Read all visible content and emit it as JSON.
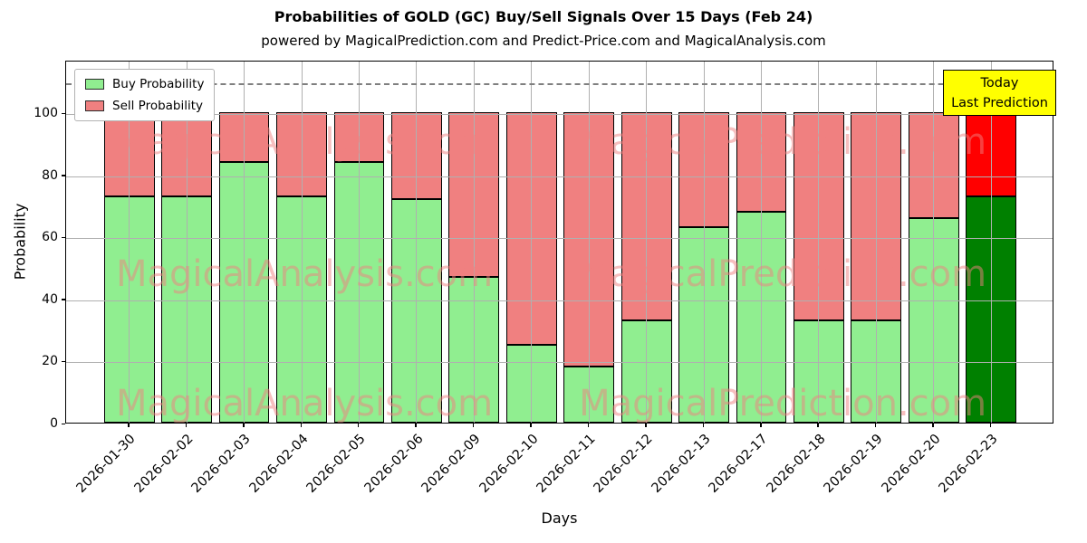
{
  "title": "Probabilities of GOLD (GC) Buy/Sell Signals Over 15 Days (Feb 24)",
  "subtitle": "powered by MagicalPrediction.com and Predict-Price.com and MagicalAnalysis.com",
  "legend": [
    {
      "label": "Buy Probability",
      "color": "#90EE90"
    },
    {
      "label": "Sell Probability",
      "color": "#F08080"
    }
  ],
  "annotation": {
    "line1": "Today",
    "line2": "Last Prediction",
    "bg": "#ffff00",
    "border": "#000000"
  },
  "watermarks": [
    "MagicalAnalysis.com",
    "MagicalPrediction.com"
  ],
  "chart_data": {
    "type": "bar",
    "stacked": true,
    "title": "Probabilities of GOLD (GC) Buy/Sell Signals Over 15 Days (Feb 24)",
    "xlabel": "Days",
    "ylabel": "Probability",
    "categories": [
      "2026-01-30",
      "2026-02-02",
      "2026-02-03",
      "2026-02-04",
      "2026-02-05",
      "2026-02-06",
      "2026-02-09",
      "2026-02-10",
      "2026-02-11",
      "2026-02-12",
      "2026-02-13",
      "2026-02-17",
      "2026-02-18",
      "2026-02-19",
      "2026-02-20",
      "2026-02-23"
    ],
    "series": [
      {
        "name": "Buy Probability",
        "color": "#90EE90",
        "today_color": "#008000",
        "values": [
          73,
          73,
          84,
          73,
          84,
          72,
          47,
          25,
          18,
          33,
          63,
          68,
          33,
          33,
          66,
          73
        ]
      },
      {
        "name": "Sell Probability",
        "color": "#F08080",
        "today_color": "#FF0000",
        "values": [
          27,
          27,
          16,
          27,
          16,
          28,
          53,
          75,
          82,
          67,
          37,
          32,
          67,
          67,
          34,
          27
        ]
      }
    ],
    "yticks": [
      0,
      20,
      40,
      60,
      80,
      100
    ],
    "ylim": [
      0,
      117
    ],
    "dashed_line_y": 110,
    "grid": true,
    "legend_position": "upper left",
    "today_annotation_index": 15
  }
}
